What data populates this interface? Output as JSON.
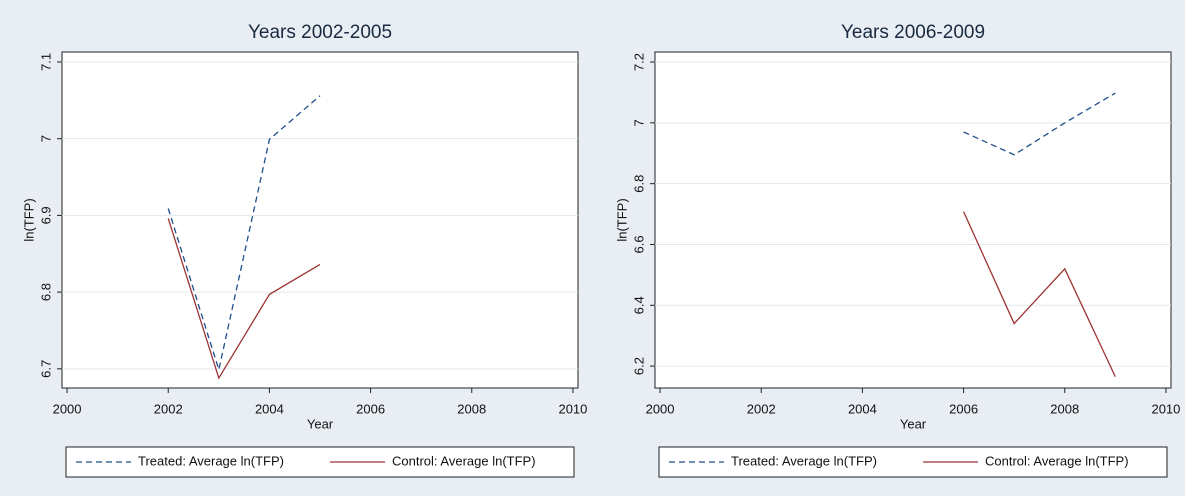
{
  "chart_data": [
    {
      "type": "line",
      "title": "Years 2002-2005",
      "xlabel": "Year",
      "ylabel": "ln(TFP)",
      "x": [
        2002,
        2003,
        2004,
        2005
      ],
      "series": [
        {
          "name": "Treated: Average ln(TFP)",
          "color": "#1f4e8c",
          "dash": true,
          "values": [
            6.909,
            6.699,
            6.999,
            7.056
          ]
        },
        {
          "name": "Control: Average ln(TFP)",
          "color": "#9c3434",
          "dash": false,
          "values": [
            6.896,
            6.688,
            6.797,
            6.836
          ]
        }
      ],
      "xlim": [
        1999.9,
        2010.1
      ],
      "xticks": [
        2000,
        2002,
        2004,
        2006,
        2008,
        2010
      ],
      "ylim": [
        6.675,
        7.113
      ],
      "yticks": [
        6.7,
        6.8,
        6.9,
        7,
        7.1
      ],
      "grid": true,
      "legend": "bottom"
    },
    {
      "type": "line",
      "title": "Years 2006-2009",
      "xlabel": "Year",
      "ylabel": "ln(TFP)",
      "x": [
        2006,
        2007,
        2008,
        2009
      ],
      "series": [
        {
          "name": "Treated: Average ln(TFP)",
          "color": "#1f4e8c",
          "dash": true,
          "values": [
            6.97,
            6.895,
            7.0,
            7.098
          ]
        },
        {
          "name": "Control: Average ln(TFP)",
          "color": "#9c3434",
          "dash": false,
          "values": [
            6.708,
            6.34,
            6.52,
            6.165
          ]
        }
      ],
      "xlim": [
        1999.9,
        2010.1
      ],
      "xticks": [
        2000,
        2002,
        2004,
        2006,
        2008,
        2010
      ],
      "ylim": [
        6.128,
        7.233
      ],
      "yticks": [
        6.2,
        6.4,
        6.6,
        6.8,
        7,
        7.2
      ],
      "grid": true,
      "legend": "bottom"
    }
  ]
}
